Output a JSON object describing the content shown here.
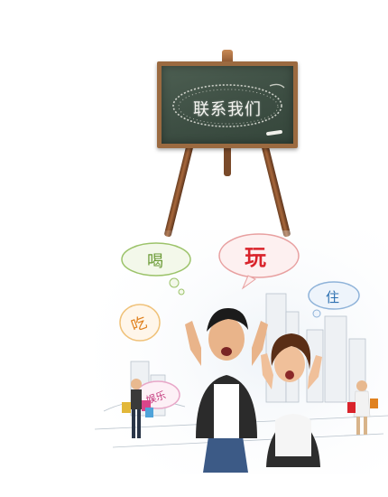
{
  "board": {
    "title": "联系我们"
  },
  "bubbles": {
    "drink": "喝",
    "play": "玩",
    "stay": "住",
    "eat": "吃",
    "entertainment": "娱乐"
  },
  "colors": {
    "board_green": "#3d4e43",
    "frame_wood": "#9b6a40",
    "bubble_green": "#6a9a35",
    "bubble_red": "#d9232b",
    "bubble_blue": "#2b6fb0",
    "bubble_orange": "#e0811f",
    "bubble_pink": "#c2357a"
  }
}
